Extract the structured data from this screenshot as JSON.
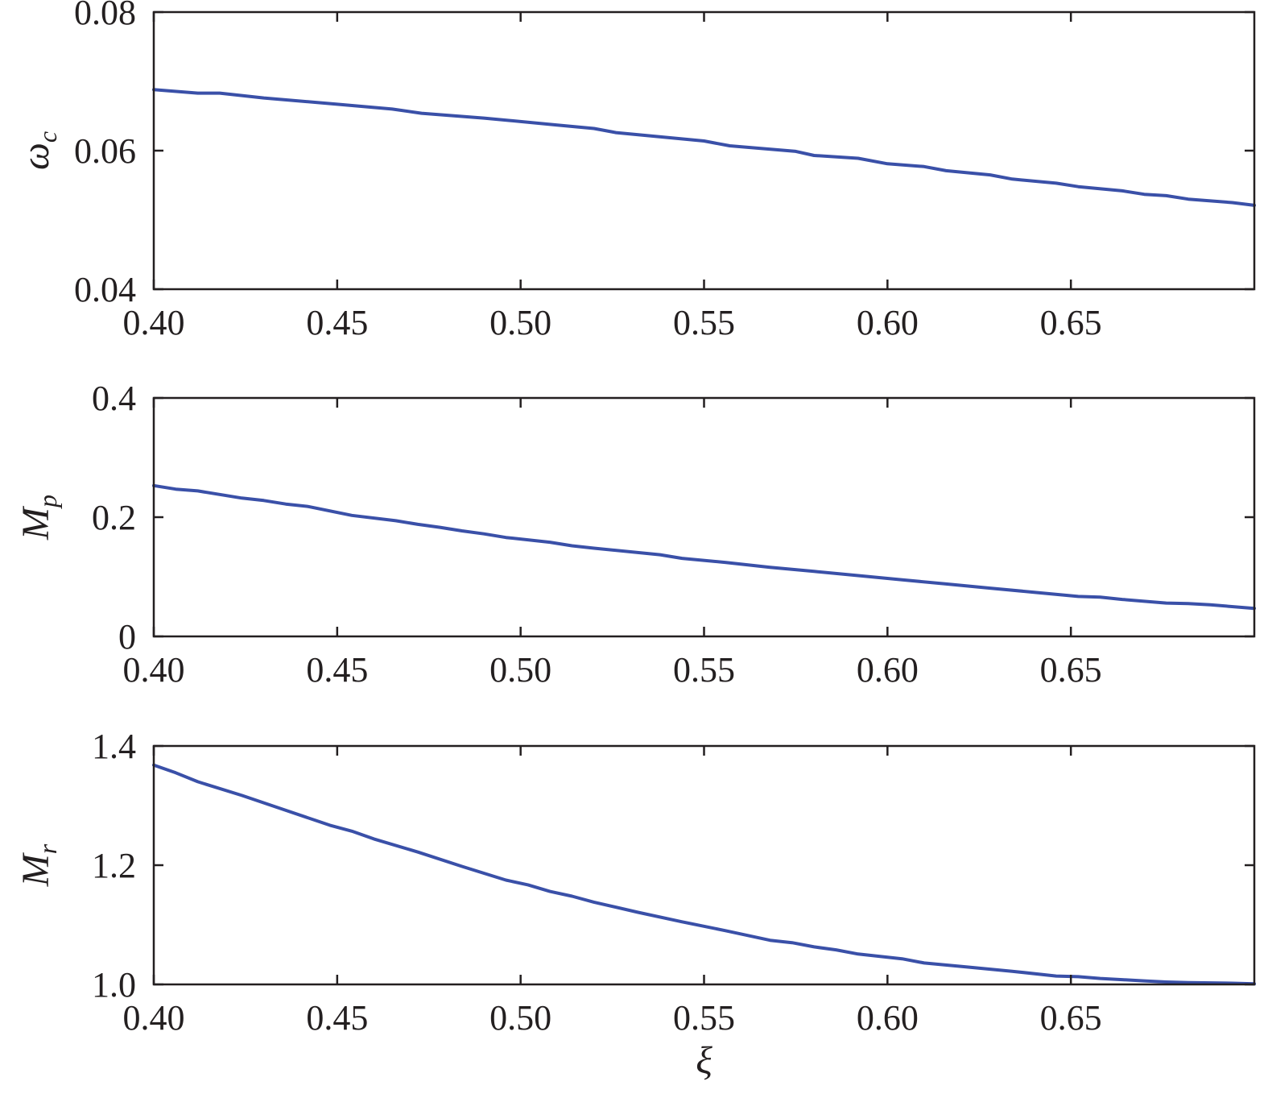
{
  "colors": {
    "series": "#3a50a8",
    "axis": "#231f20"
  },
  "chart_data": [
    {
      "type": "line",
      "ylabel": "ω",
      "ylabel_sub": "c",
      "xlabel": "",
      "xlim": [
        0.4,
        0.7
      ],
      "ylim": [
        0.04,
        0.08
      ],
      "xticks": [
        0.4,
        0.45,
        0.5,
        0.55,
        0.6,
        0.65
      ],
      "xtick_labels": [
        "0.40",
        "0.45",
        "0.50",
        "0.55",
        "0.60",
        "0.65"
      ],
      "yticks": [
        0.04,
        0.06,
        0.08
      ],
      "ytick_labels": [
        "0.04",
        "0.06",
        "0.08"
      ],
      "grid": false,
      "series": [
        {
          "x": [
            0.4,
            0.412,
            0.418,
            0.43,
            0.45,
            0.465,
            0.473,
            0.49,
            0.51,
            0.52,
            0.526,
            0.55,
            0.557,
            0.575,
            0.58,
            0.592,
            0.6,
            0.61,
            0.616,
            0.628,
            0.634,
            0.646,
            0.652,
            0.664,
            0.67,
            0.676,
            0.682,
            0.694,
            0.7
          ],
          "y": [
            0.0688,
            0.0683,
            0.0683,
            0.0676,
            0.0667,
            0.066,
            0.0654,
            0.0647,
            0.0637,
            0.0632,
            0.0626,
            0.0614,
            0.0607,
            0.0599,
            0.0593,
            0.0589,
            0.0581,
            0.0577,
            0.0571,
            0.0565,
            0.0559,
            0.0553,
            0.0548,
            0.0542,
            0.0537,
            0.0535,
            0.053,
            0.0525,
            0.0521
          ]
        }
      ]
    },
    {
      "type": "line",
      "ylabel": "M",
      "ylabel_sub": "p",
      "xlabel": "",
      "xlim": [
        0.4,
        0.7
      ],
      "ylim": [
        0,
        0.4
      ],
      "xticks": [
        0.4,
        0.45,
        0.5,
        0.55,
        0.6,
        0.65
      ],
      "xtick_labels": [
        "0.40",
        "0.45",
        "0.50",
        "0.55",
        "0.60",
        "0.65"
      ],
      "yticks": [
        0,
        0.2,
        0.4
      ],
      "ytick_labels": [
        "0",
        "0.2",
        "0.4"
      ],
      "grid": false,
      "series": [
        {
          "x": [
            0.4,
            0.406,
            0.412,
            0.424,
            0.43,
            0.436,
            0.442,
            0.454,
            0.466,
            0.472,
            0.478,
            0.484,
            0.49,
            0.496,
            0.508,
            0.514,
            0.52,
            0.538,
            0.544,
            0.556,
            0.568,
            0.58,
            0.592,
            0.604,
            0.616,
            0.628,
            0.64,
            0.652,
            0.658,
            0.664,
            0.676,
            0.682,
            0.688,
            0.7
          ],
          "y": [
            0.253,
            0.247,
            0.244,
            0.232,
            0.228,
            0.222,
            0.218,
            0.203,
            0.194,
            0.188,
            0.183,
            0.177,
            0.172,
            0.166,
            0.158,
            0.152,
            0.148,
            0.137,
            0.131,
            0.124,
            0.116,
            0.109,
            0.102,
            0.095,
            0.088,
            0.081,
            0.074,
            0.067,
            0.066,
            0.062,
            0.056,
            0.055,
            0.053,
            0.047
          ]
        }
      ]
    },
    {
      "type": "line",
      "ylabel": "M",
      "ylabel_sub": "r",
      "xlabel": "ξ",
      "xlim": [
        0.4,
        0.7
      ],
      "ylim": [
        1.0,
        1.4
      ],
      "xticks": [
        0.4,
        0.45,
        0.5,
        0.55,
        0.6,
        0.65
      ],
      "xtick_labels": [
        "0.40",
        "0.45",
        "0.50",
        "0.55",
        "0.60",
        "0.65"
      ],
      "yticks": [
        1.0,
        1.2,
        1.4
      ],
      "ytick_labels": [
        "1.0",
        "1.2",
        "1.4"
      ],
      "grid": false,
      "series": [
        {
          "x": [
            0.4,
            0.406,
            0.412,
            0.424,
            0.436,
            0.448,
            0.454,
            0.46,
            0.472,
            0.484,
            0.496,
            0.502,
            0.508,
            0.514,
            0.52,
            0.532,
            0.544,
            0.556,
            0.568,
            0.574,
            0.58,
            0.586,
            0.592,
            0.604,
            0.61,
            0.622,
            0.634,
            0.646,
            0.652,
            0.658,
            0.664,
            0.67,
            0.676,
            0.682,
            0.694,
            0.7
          ],
          "y": [
            1.368,
            1.355,
            1.34,
            1.317,
            1.292,
            1.267,
            1.257,
            1.244,
            1.222,
            1.198,
            1.175,
            1.167,
            1.156,
            1.148,
            1.138,
            1.121,
            1.105,
            1.09,
            1.074,
            1.07,
            1.063,
            1.058,
            1.051,
            1.043,
            1.036,
            1.029,
            1.022,
            1.014,
            1.013,
            1.01,
            1.008,
            1.006,
            1.004,
            1.003,
            1.002,
            1.001
          ]
        }
      ]
    }
  ]
}
